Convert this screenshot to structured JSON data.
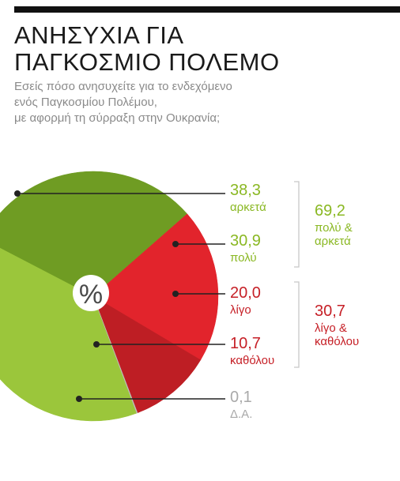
{
  "title": [
    "ΑΝΗΣΥΧΙΑ ΓΙΑ",
    "ΠΑΓΚΟΣΜΙΟ ΠΟΛΕΜΟ"
  ],
  "subtitle": [
    "Εσείς πόσο ανησυχείτε για το ενδεχόμενο",
    "ενός Παγκοσμίου Πολέμου,",
    "με αφορμή τη σύρραξη στην Ουκρανία;"
  ],
  "center_label": "%",
  "colors": {
    "green_light": "#9bc63b",
    "green_dark": "#6f9c23",
    "red_bright": "#e2242c",
    "red_dark": "#be1e24",
    "gray": "#bdbdbd",
    "green_text": "#8ab823",
    "red_text": "#c62027",
    "gray_text": "#a9a9a9"
  },
  "chart_data": {
    "type": "pie",
    "title": "ΑΝΗΣΥΧΙΑ ΓΙΑ ΠΑΓΚΟΣΜΙΟ ΠΟΛΕΜΟ",
    "unit": "%",
    "slices": [
      {
        "label": "αρκετά",
        "value": 38.3,
        "value_text": "38,3",
        "color": "#9bc63b",
        "text_color": "#8ab823"
      },
      {
        "label": "πολύ",
        "value": 30.9,
        "value_text": "30,9",
        "color": "#6f9c23",
        "text_color": "#8ab823"
      },
      {
        "label": "λίγο",
        "value": 20.0,
        "value_text": "20,0",
        "color": "#e2242c",
        "text_color": "#c62027"
      },
      {
        "label": "καθόλου",
        "value": 10.7,
        "value_text": "10,7",
        "color": "#be1e24",
        "text_color": "#c62027"
      },
      {
        "label": "Δ.Α.",
        "value": 0.1,
        "value_text": "0,1",
        "color": "#bdbdbd",
        "text_color": "#a9a9a9"
      }
    ],
    "groups": [
      {
        "value_text": "69,2",
        "label_lines": [
          "πολύ &",
          "αρκετά"
        ],
        "color": "#8ab823",
        "members": [
          0,
          1
        ]
      },
      {
        "value_text": "30,7",
        "label_lines": [
          "λίγο &",
          "καθόλου"
        ],
        "color": "#c62027",
        "members": [
          2,
          3
        ]
      }
    ]
  }
}
